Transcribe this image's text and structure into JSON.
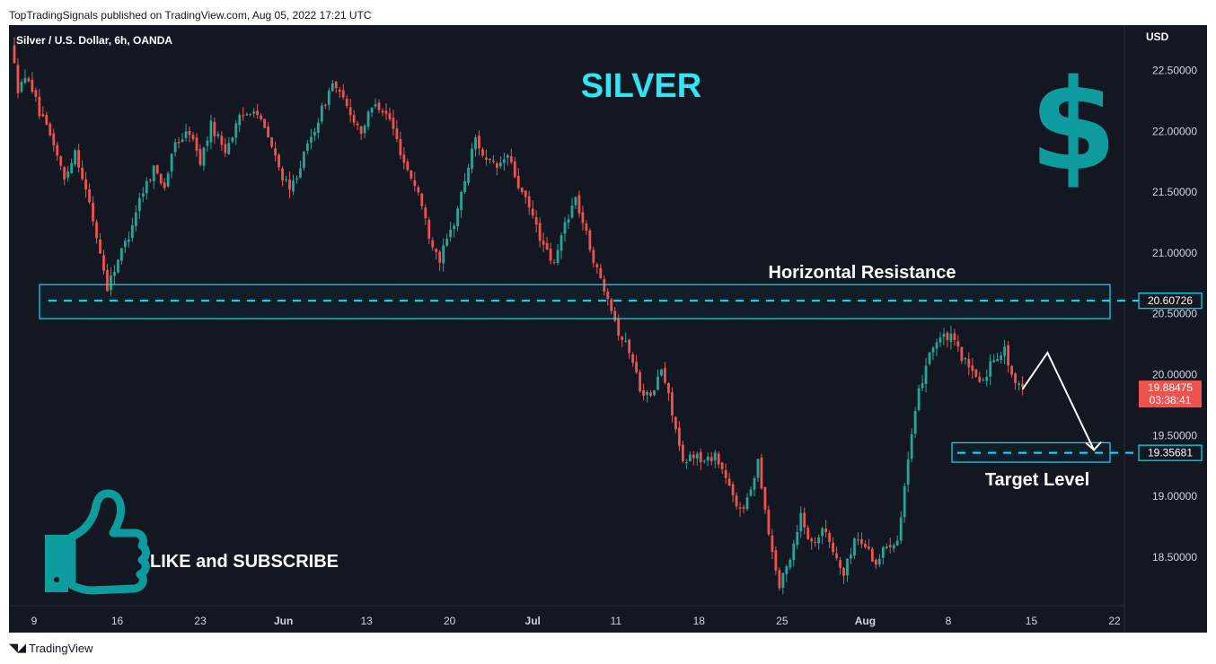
{
  "publisher_line": "TopTradingSignals published on TradingView.com, Aug 05, 2022 17:21 UTC",
  "footer_brand": "TradingView",
  "colors": {
    "background": "#131722",
    "up_candle": "#26a69a",
    "down_candle": "#ef5350",
    "accent_cyan": "#00e5ff",
    "label_cyan": "#2fe6f2",
    "icon_teal": "#0e9b9e",
    "axis_text": "#d1d4dc"
  },
  "chart_data": {
    "type": "candlestick",
    "symbol_label": "Silver / U.S. Dollar, 6h, OANDA",
    "currency": "USD",
    "title": "SILVER",
    "ylim": [
      18.1,
      22.8
    ],
    "y_ticks": [
      "22.50000",
      "22.00000",
      "21.50000",
      "21.00000",
      "20.50000",
      "20.00000",
      "19.50000",
      "19.00000",
      "18.50000"
    ],
    "x_ticks": [
      "9",
      "16",
      "23",
      "Jun",
      "13",
      "20",
      "Jul",
      "11",
      "18",
      "25",
      "Aug",
      "8",
      "15",
      "22"
    ],
    "candle_path": [
      [
        0,
        22.72
      ],
      [
        2,
        22.35
      ],
      [
        5,
        22.45
      ],
      [
        8,
        22.15
      ],
      [
        12,
        21.9
      ],
      [
        15,
        21.6
      ],
      [
        18,
        21.85
      ],
      [
        22,
        21.4
      ],
      [
        25,
        21.0
      ],
      [
        27,
        20.72
      ],
      [
        30,
        20.95
      ],
      [
        33,
        21.15
      ],
      [
        36,
        21.45
      ],
      [
        40,
        21.7
      ],
      [
        43,
        21.55
      ],
      [
        46,
        21.9
      ],
      [
        50,
        22.0
      ],
      [
        53,
        21.75
      ],
      [
        56,
        22.05
      ],
      [
        60,
        21.85
      ],
      [
        64,
        22.1
      ],
      [
        68,
        22.2
      ],
      [
        72,
        21.95
      ],
      [
        75,
        21.7
      ],
      [
        78,
        21.5
      ],
      [
        82,
        21.8
      ],
      [
        86,
        22.1
      ],
      [
        90,
        22.4
      ],
      [
        94,
        22.2
      ],
      [
        98,
        22.0
      ],
      [
        102,
        22.25
      ],
      [
        106,
        22.1
      ],
      [
        110,
        21.75
      ],
      [
        114,
        21.5
      ],
      [
        117,
        21.15
      ],
      [
        120,
        20.95
      ],
      [
        124,
        21.25
      ],
      [
        127,
        21.6
      ],
      [
        130,
        21.95
      ],
      [
        133,
        21.75
      ],
      [
        136,
        21.7
      ],
      [
        139,
        21.8
      ],
      [
        142,
        21.55
      ],
      [
        146,
        21.3
      ],
      [
        149,
        21.05
      ],
      [
        152,
        20.9
      ],
      [
        155,
        21.25
      ],
      [
        158,
        21.45
      ],
      [
        161,
        21.15
      ],
      [
        164,
        20.85
      ],
      [
        167,
        20.66
      ],
      [
        170,
        20.35
      ],
      [
        173,
        20.2
      ],
      [
        176,
        19.9
      ],
      [
        179,
        19.8
      ],
      [
        182,
        20.05
      ],
      [
        185,
        19.7
      ],
      [
        188,
        19.25
      ],
      [
        191,
        19.35
      ],
      [
        194,
        19.28
      ],
      [
        197,
        19.35
      ],
      [
        200,
        19.15
      ],
      [
        203,
        18.9
      ],
      [
        206,
        18.95
      ],
      [
        209,
        19.3
      ],
      [
        212,
        18.7
      ],
      [
        215,
        18.25
      ],
      [
        218,
        18.5
      ],
      [
        221,
        18.85
      ],
      [
        224,
        18.6
      ],
      [
        227,
        18.75
      ],
      [
        230,
        18.55
      ],
      [
        233,
        18.35
      ],
      [
        236,
        18.65
      ],
      [
        239,
        18.6
      ],
      [
        242,
        18.45
      ],
      [
        245,
        18.6
      ],
      [
        248,
        18.65
      ],
      [
        251,
        19.3
      ],
      [
        254,
        19.85
      ],
      [
        257,
        20.2
      ],
      [
        260,
        20.3
      ],
      [
        263,
        20.3
      ],
      [
        266,
        20.15
      ],
      [
        269,
        20.0
      ],
      [
        272,
        19.95
      ],
      [
        275,
        20.15
      ],
      [
        278,
        20.2
      ],
      [
        281,
        19.9
      ]
    ],
    "candle_count": 283,
    "annotations": {
      "resistance_label": "Horizontal Resistance",
      "resistance_level": "20.60726",
      "resistance_zone": [
        20.46,
        20.74
      ],
      "target_label": "Target Level",
      "target_level": "19.35681",
      "target_zone": [
        19.28,
        19.44
      ],
      "current_price": "19.88475",
      "countdown": "03:38:41"
    },
    "forecast_path": [
      [
        282,
        19.88
      ],
      [
        289,
        20.18
      ],
      [
        302,
        19.38
      ]
    ]
  },
  "promo": {
    "text": "LIKE and SUBSCRIBE",
    "icon": "thumbs-up-icon"
  },
  "dollar": {
    "glyph": "$",
    "icon": "dollar-sign-icon"
  }
}
